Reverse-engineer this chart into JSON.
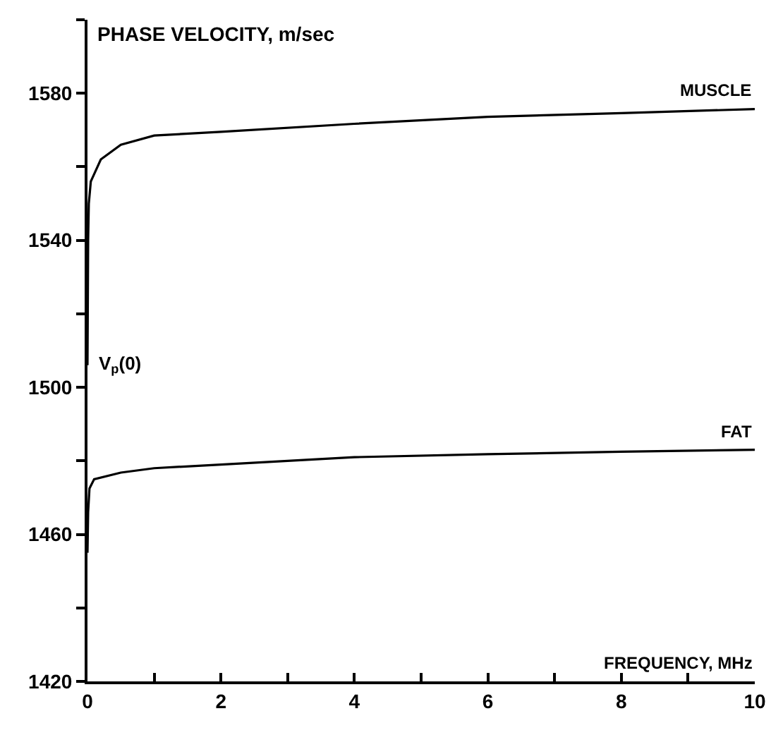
{
  "chart_data": {
    "type": "line",
    "ylabel": "PHASE VELOCITY, m/sec",
    "xlabel": "FREQUENCY, MHz",
    "xlim": [
      0,
      10
    ],
    "ylim": [
      1420,
      1600
    ],
    "xticks": [
      0,
      {
        "value": 1,
        "label": null
      },
      2,
      {
        "value": 3,
        "label": null
      },
      4,
      {
        "value": 5,
        "label": null
      },
      6,
      {
        "value": 7,
        "label": null
      },
      8,
      {
        "value": 9,
        "label": null
      },
      10
    ],
    "yticks": [
      1420,
      {
        "value": 1440,
        "label": null
      },
      1460,
      {
        "value": 1480,
        "label": null
      },
      1500,
      {
        "value": 1520,
        "label": null
      },
      1540,
      {
        "value": 1560,
        "label": null
      },
      1580,
      {
        "value": 1600,
        "label": null
      }
    ],
    "legend": false,
    "marker": "none",
    "line_style": "solid",
    "series": [
      {
        "name": "MUSCLE",
        "color": "#000000",
        "x": [
          0,
          0.01,
          0.02,
          0.05,
          0.1,
          0.2,
          0.5,
          1,
          2,
          4,
          6,
          8,
          10
        ],
        "values": [
          1506,
          1540,
          1550,
          1556,
          1558,
          1562,
          1566,
          1568.5,
          1569.5,
          1571.7,
          1573.6,
          1574.6,
          1575.7
        ]
      },
      {
        "name": "FAT",
        "color": "#000000",
        "x": [
          0,
          0.01,
          0.03,
          0.1,
          0.5,
          1,
          2,
          4,
          6,
          8,
          10
        ],
        "values": [
          1455,
          1466,
          1472.5,
          1475,
          1476.8,
          1478,
          1479,
          1481,
          1481.8,
          1482.5,
          1483
        ]
      }
    ],
    "annotations": [
      {
        "text": "V$_{p}$(0)",
        "x": 0,
        "y": 1506
      }
    ]
  }
}
